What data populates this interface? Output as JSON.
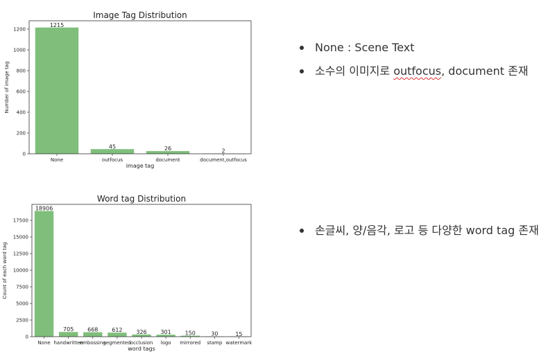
{
  "chart_data": [
    {
      "type": "bar",
      "title": "Image Tag Distribution",
      "xlabel": "image tag",
      "ylabel": "Number of image tag",
      "categories": [
        "None",
        "outfocus",
        "document",
        "document,outfocus"
      ],
      "values": [
        1215,
        45,
        26,
        2
      ],
      "data_labels": [
        "1215",
        "45",
        "26",
        "2"
      ],
      "ylim": [
        0,
        1280
      ],
      "yticks": [
        0,
        200,
        400,
        600,
        800,
        1000,
        1200
      ],
      "bar_color": "#7fbf7b",
      "grid": false
    },
    {
      "type": "bar",
      "title": "Word tag Distribution",
      "xlabel": "word tags",
      "ylabel": "Count of each word tag",
      "categories": [
        "None",
        "handwritten",
        "embossing",
        "segmented",
        "occlusion",
        "logo",
        "mirrored",
        "stamp",
        "watermark"
      ],
      "values": [
        18906,
        705,
        668,
        612,
        326,
        301,
        150,
        30,
        15
      ],
      "data_labels": [
        "18906",
        "705",
        "668",
        "612",
        "326",
        "301",
        "150",
        "30",
        "15"
      ],
      "ylim": [
        0,
        19900
      ],
      "yticks": [
        0,
        2500,
        5000,
        7500,
        10000,
        12500,
        15000,
        17500
      ],
      "bar_color": "#7fbf7b",
      "grid": false
    }
  ],
  "notes": {
    "top": [
      {
        "text": "None : Scene Text"
      },
      {
        "pre": "소수의 이미지로 ",
        "flagged": "outfocus",
        "post": ", document 존재"
      }
    ],
    "bottom": [
      {
        "text": "손글씨, 양/음각, 로고 등 다양한 word tag 존재"
      }
    ]
  }
}
